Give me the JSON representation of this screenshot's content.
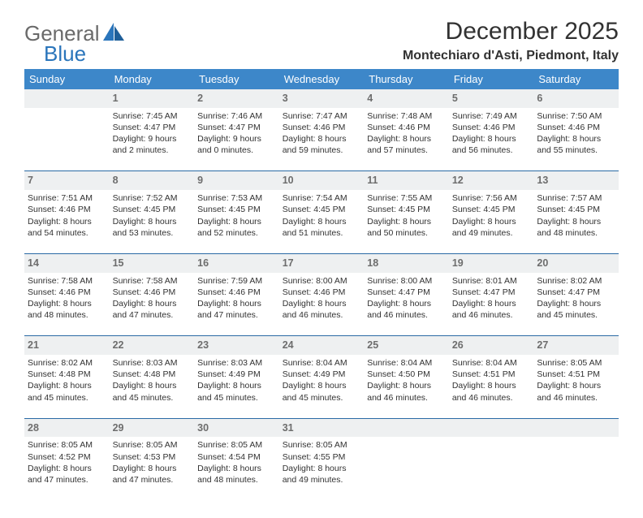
{
  "brand": {
    "general": "General",
    "blue": "Blue"
  },
  "title": "December 2025",
  "location": "Montechiaro d'Asti, Piedmont, Italy",
  "colors": {
    "header_bg": "#3d87c9",
    "header_text": "#ffffff",
    "daynum_bg": "#eef0f1",
    "daynum_text": "#6d6d6d",
    "body_text": "#323232",
    "rule": "#2a6aa5",
    "logo_gray": "#6a6a6a",
    "logo_blue": "#2a75bb"
  },
  "weekdays": [
    "Sunday",
    "Monday",
    "Tuesday",
    "Wednesday",
    "Thursday",
    "Friday",
    "Saturday"
  ],
  "weeks": [
    [
      {
        "n": "",
        "sr": "",
        "ss": "",
        "dl": ""
      },
      {
        "n": "1",
        "sr": "Sunrise: 7:45 AM",
        "ss": "Sunset: 4:47 PM",
        "dl": "Daylight: 9 hours and 2 minutes."
      },
      {
        "n": "2",
        "sr": "Sunrise: 7:46 AM",
        "ss": "Sunset: 4:47 PM",
        "dl": "Daylight: 9 hours and 0 minutes."
      },
      {
        "n": "3",
        "sr": "Sunrise: 7:47 AM",
        "ss": "Sunset: 4:46 PM",
        "dl": "Daylight: 8 hours and 59 minutes."
      },
      {
        "n": "4",
        "sr": "Sunrise: 7:48 AM",
        "ss": "Sunset: 4:46 PM",
        "dl": "Daylight: 8 hours and 57 minutes."
      },
      {
        "n": "5",
        "sr": "Sunrise: 7:49 AM",
        "ss": "Sunset: 4:46 PM",
        "dl": "Daylight: 8 hours and 56 minutes."
      },
      {
        "n": "6",
        "sr": "Sunrise: 7:50 AM",
        "ss": "Sunset: 4:46 PM",
        "dl": "Daylight: 8 hours and 55 minutes."
      }
    ],
    [
      {
        "n": "7",
        "sr": "Sunrise: 7:51 AM",
        "ss": "Sunset: 4:46 PM",
        "dl": "Daylight: 8 hours and 54 minutes."
      },
      {
        "n": "8",
        "sr": "Sunrise: 7:52 AM",
        "ss": "Sunset: 4:45 PM",
        "dl": "Daylight: 8 hours and 53 minutes."
      },
      {
        "n": "9",
        "sr": "Sunrise: 7:53 AM",
        "ss": "Sunset: 4:45 PM",
        "dl": "Daylight: 8 hours and 52 minutes."
      },
      {
        "n": "10",
        "sr": "Sunrise: 7:54 AM",
        "ss": "Sunset: 4:45 PM",
        "dl": "Daylight: 8 hours and 51 minutes."
      },
      {
        "n": "11",
        "sr": "Sunrise: 7:55 AM",
        "ss": "Sunset: 4:45 PM",
        "dl": "Daylight: 8 hours and 50 minutes."
      },
      {
        "n": "12",
        "sr": "Sunrise: 7:56 AM",
        "ss": "Sunset: 4:45 PM",
        "dl": "Daylight: 8 hours and 49 minutes."
      },
      {
        "n": "13",
        "sr": "Sunrise: 7:57 AM",
        "ss": "Sunset: 4:45 PM",
        "dl": "Daylight: 8 hours and 48 minutes."
      }
    ],
    [
      {
        "n": "14",
        "sr": "Sunrise: 7:58 AM",
        "ss": "Sunset: 4:46 PM",
        "dl": "Daylight: 8 hours and 48 minutes."
      },
      {
        "n": "15",
        "sr": "Sunrise: 7:58 AM",
        "ss": "Sunset: 4:46 PM",
        "dl": "Daylight: 8 hours and 47 minutes."
      },
      {
        "n": "16",
        "sr": "Sunrise: 7:59 AM",
        "ss": "Sunset: 4:46 PM",
        "dl": "Daylight: 8 hours and 47 minutes."
      },
      {
        "n": "17",
        "sr": "Sunrise: 8:00 AM",
        "ss": "Sunset: 4:46 PM",
        "dl": "Daylight: 8 hours and 46 minutes."
      },
      {
        "n": "18",
        "sr": "Sunrise: 8:00 AM",
        "ss": "Sunset: 4:47 PM",
        "dl": "Daylight: 8 hours and 46 minutes."
      },
      {
        "n": "19",
        "sr": "Sunrise: 8:01 AM",
        "ss": "Sunset: 4:47 PM",
        "dl": "Daylight: 8 hours and 46 minutes."
      },
      {
        "n": "20",
        "sr": "Sunrise: 8:02 AM",
        "ss": "Sunset: 4:47 PM",
        "dl": "Daylight: 8 hours and 45 minutes."
      }
    ],
    [
      {
        "n": "21",
        "sr": "Sunrise: 8:02 AM",
        "ss": "Sunset: 4:48 PM",
        "dl": "Daylight: 8 hours and 45 minutes."
      },
      {
        "n": "22",
        "sr": "Sunrise: 8:03 AM",
        "ss": "Sunset: 4:48 PM",
        "dl": "Daylight: 8 hours and 45 minutes."
      },
      {
        "n": "23",
        "sr": "Sunrise: 8:03 AM",
        "ss": "Sunset: 4:49 PM",
        "dl": "Daylight: 8 hours and 45 minutes."
      },
      {
        "n": "24",
        "sr": "Sunrise: 8:04 AM",
        "ss": "Sunset: 4:49 PM",
        "dl": "Daylight: 8 hours and 45 minutes."
      },
      {
        "n": "25",
        "sr": "Sunrise: 8:04 AM",
        "ss": "Sunset: 4:50 PM",
        "dl": "Daylight: 8 hours and 46 minutes."
      },
      {
        "n": "26",
        "sr": "Sunrise: 8:04 AM",
        "ss": "Sunset: 4:51 PM",
        "dl": "Daylight: 8 hours and 46 minutes."
      },
      {
        "n": "27",
        "sr": "Sunrise: 8:05 AM",
        "ss": "Sunset: 4:51 PM",
        "dl": "Daylight: 8 hours and 46 minutes."
      }
    ],
    [
      {
        "n": "28",
        "sr": "Sunrise: 8:05 AM",
        "ss": "Sunset: 4:52 PM",
        "dl": "Daylight: 8 hours and 47 minutes."
      },
      {
        "n": "29",
        "sr": "Sunrise: 8:05 AM",
        "ss": "Sunset: 4:53 PM",
        "dl": "Daylight: 8 hours and 47 minutes."
      },
      {
        "n": "30",
        "sr": "Sunrise: 8:05 AM",
        "ss": "Sunset: 4:54 PM",
        "dl": "Daylight: 8 hours and 48 minutes."
      },
      {
        "n": "31",
        "sr": "Sunrise: 8:05 AM",
        "ss": "Sunset: 4:55 PM",
        "dl": "Daylight: 8 hours and 49 minutes."
      },
      {
        "n": "",
        "sr": "",
        "ss": "",
        "dl": ""
      },
      {
        "n": "",
        "sr": "",
        "ss": "",
        "dl": ""
      },
      {
        "n": "",
        "sr": "",
        "ss": "",
        "dl": ""
      }
    ]
  ]
}
